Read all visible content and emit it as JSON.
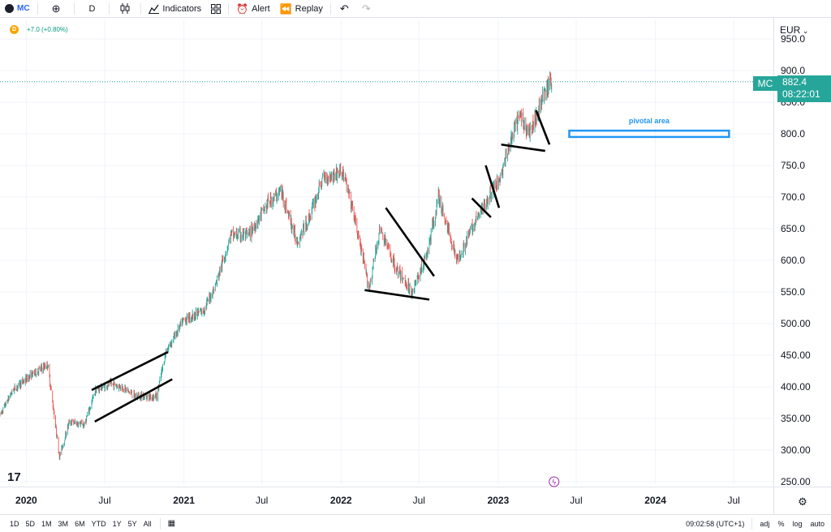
{
  "toolbar": {
    "symbol": "MC",
    "interval": "D",
    "indicators_label": "Indicators",
    "alert_label": "Alert",
    "replay_label": "Replay"
  },
  "legend": {
    "badge": "D",
    "change": "+7.0 (+0.80%)"
  },
  "price_scale": {
    "currency": "EUR",
    "last_price_symbol": "MC",
    "last_price": "882.4",
    "countdown": "08:22:01"
  },
  "annotation": {
    "label": "pivotal area"
  },
  "bottom": {
    "ranges": [
      "1D",
      "5D",
      "1M",
      "3M",
      "6M",
      "YTD",
      "1Y",
      "5Y",
      "All"
    ],
    "time": "09:02:58 (UTC+1)",
    "adj": "adj",
    "pct": "%",
    "log": "log",
    "auto": "auto"
  },
  "colors": {
    "up": "#26a69a",
    "down": "#ef5350",
    "trendline": "#000000",
    "box": "#2196f3",
    "grid": "#f0f3fa"
  },
  "chart_data": {
    "type": "candlestick",
    "ylim": [
      250,
      950
    ],
    "y_ticks": [
      "950.0",
      "900.0",
      "850.0",
      "800.0",
      "750.0",
      "700.0",
      "650.0",
      "600.0",
      "550.0",
      "500.00",
      "450.00",
      "400.00",
      "350.00",
      "300.00",
      "250.00"
    ],
    "x_ticks": [
      "2020",
      "Jul",
      "2021",
      "Jul",
      "2022",
      "Jul",
      "2023",
      "Jul",
      "2024",
      "Jul"
    ],
    "x_ticks_bold": [
      true,
      false,
      true,
      false,
      true,
      false,
      true,
      false,
      true,
      false
    ],
    "x_range": [
      "2019-11-01",
      "2024-10-01"
    ],
    "x_tick_dates": [
      "2020-01-01",
      "2020-07-01",
      "2021-01-01",
      "2021-07-01",
      "2022-01-01",
      "2022-07-01",
      "2023-01-01",
      "2023-07-01",
      "2024-01-01",
      "2024-07-01"
    ],
    "price_path": [
      [
        "2019-11-01",
        355
      ],
      [
        "2019-12-01",
        395
      ],
      [
        "2020-01-15",
        420
      ],
      [
        "2020-02-20",
        435
      ],
      [
        "2020-03-18",
        290
      ],
      [
        "2020-04-10",
        345
      ],
      [
        "2020-05-15",
        340
      ],
      [
        "2020-06-10",
        395
      ],
      [
        "2020-07-15",
        405
      ],
      [
        "2020-08-10",
        400
      ],
      [
        "2020-09-10",
        385
      ],
      [
        "2020-10-30",
        385
      ],
      [
        "2020-11-20",
        455
      ],
      [
        "2020-12-31",
        505
      ],
      [
        "2021-02-15",
        520
      ],
      [
        "2021-03-15",
        560
      ],
      [
        "2021-04-20",
        640
      ],
      [
        "2021-06-01",
        640
      ],
      [
        "2021-07-15",
        690
      ],
      [
        "2021-08-15",
        710
      ],
      [
        "2021-09-20",
        630
      ],
      [
        "2021-10-15",
        660
      ],
      [
        "2021-11-20",
        730
      ],
      [
        "2022-01-05",
        740
      ],
      [
        "2022-01-28",
        680
      ],
      [
        "2022-03-07",
        555
      ],
      [
        "2022-04-01",
        650
      ],
      [
        "2022-05-10",
        585
      ],
      [
        "2022-06-15",
        550
      ],
      [
        "2022-07-20",
        610
      ],
      [
        "2022-08-15",
        700
      ],
      [
        "2022-09-28",
        600
      ],
      [
        "2022-11-01",
        650
      ],
      [
        "2022-12-01",
        690
      ],
      [
        "2023-01-05",
        730
      ],
      [
        "2023-01-31",
        790
      ],
      [
        "2023-02-20",
        830
      ],
      [
        "2023-03-15",
        800
      ],
      [
        "2023-04-10",
        850
      ],
      [
        "2023-05-05",
        885
      ]
    ],
    "trendlines": [
      {
        "start": [
          "2020-06-01",
          395
        ],
        "end": [
          "2020-11-25",
          455
        ]
      },
      {
        "start": [
          "2020-06-08",
          345
        ],
        "end": [
          "2020-12-05",
          412
        ]
      },
      {
        "start": [
          "2022-02-25",
          553
        ],
        "end": [
          "2022-07-25",
          538
        ]
      },
      {
        "start": [
          "2022-04-15",
          683
        ],
        "end": [
          "2022-08-05",
          575
        ]
      },
      {
        "start": [
          "2022-11-01",
          698
        ],
        "end": [
          "2022-12-15",
          668
        ]
      },
      {
        "start": [
          "2022-12-03",
          750
        ],
        "end": [
          "2023-01-03",
          683
        ]
      },
      {
        "start": [
          "2023-01-08",
          783
        ],
        "end": [
          "2023-04-20",
          773
        ]
      },
      {
        "start": [
          "2023-03-30",
          837
        ],
        "end": [
          "2023-04-30",
          783
        ]
      }
    ],
    "pivotal_area": {
      "from": "2023-06-15",
      "to": "2024-06-20",
      "low": 795,
      "high": 805,
      "label": "pivotal area"
    },
    "last_price_line": 882.4
  }
}
